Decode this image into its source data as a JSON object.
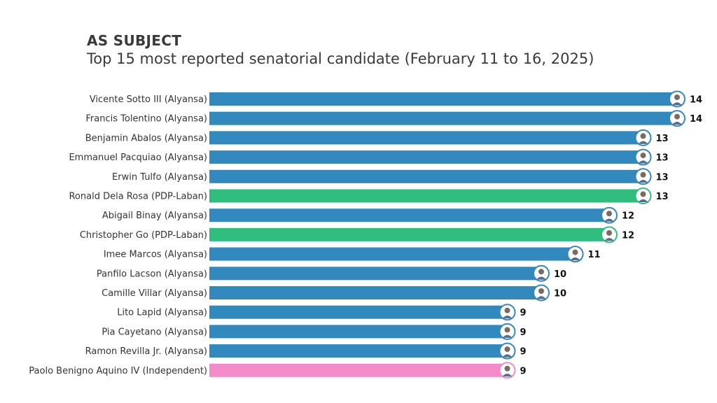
{
  "header": {
    "title": "AS SUBJECT",
    "subtitle": "Top 15 most reported senatorial candidate (February 11 to 16, 2025)"
  },
  "colors": {
    "Alyansa": "#3289bd",
    "PDP-Laban": "#2fbe7e",
    "Independent": "#f48ac9"
  },
  "chart_data": {
    "type": "bar",
    "orientation": "horizontal",
    "title": "Top 15 most reported senatorial candidate (February 11 to 16, 2025)",
    "xlabel": "",
    "ylabel": "",
    "xlim": [
      0,
      14
    ],
    "grid": false,
    "legend": "none",
    "categories": [
      "Vicente Sotto III (Alyansa)",
      "Francis Tolentino (Alyansa)",
      "Benjamin Abalos (Alyansa)",
      "Emmanuel Pacquiao (Alyansa)",
      "Erwin Tulfo (Alyansa)",
      "Ronald Dela Rosa (PDP-Laban)",
      "Abigail Binay (Alyansa)",
      "Christopher Go (PDP-Laban)",
      "Imee Marcos (Alyansa)",
      "Panfilo Lacson (Alyansa)",
      "Camille Villar (Alyansa)",
      "Lito Lapid (Alyansa)",
      "Pia Cayetano (Alyansa)",
      "Ramon Revilla Jr. (Alyansa)",
      "Paolo Benigno Aquino IV (Independent)"
    ],
    "values": [
      14,
      14,
      13,
      13,
      13,
      13,
      12,
      12,
      11,
      10,
      10,
      9,
      9,
      9,
      9
    ],
    "party": [
      "Alyansa",
      "Alyansa",
      "Alyansa",
      "Alyansa",
      "Alyansa",
      "PDP-Laban",
      "Alyansa",
      "PDP-Laban",
      "Alyansa",
      "Alyansa",
      "Alyansa",
      "Alyansa",
      "Alyansa",
      "Alyansa",
      "Independent"
    ]
  }
}
